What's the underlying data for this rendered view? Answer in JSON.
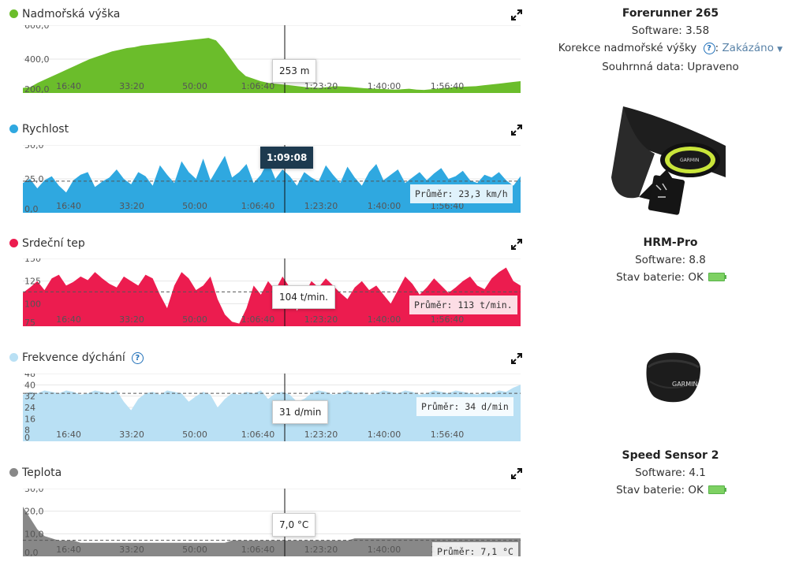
{
  "x_ticks": [
    "16:40",
    "33:20",
    "50:00",
    "1:06:40",
    "1:23:20",
    "1:40:00",
    "1:56:40"
  ],
  "charts": {
    "elevation": {
      "title": "Nadmořská výška",
      "color": "#6bbd2b",
      "y_ticks": [
        "600,0",
        "400,0",
        "200,0"
      ],
      "ylim": [
        200,
        600
      ],
      "tooltip": "253 m",
      "values": [
        230,
        235,
        260,
        280,
        300,
        320,
        340,
        360,
        380,
        400,
        415,
        430,
        445,
        455,
        465,
        470,
        480,
        485,
        490,
        495,
        500,
        505,
        510,
        515,
        520,
        525,
        510,
        460,
        400,
        340,
        300,
        285,
        270,
        260,
        255,
        250,
        245,
        240,
        235,
        232,
        230,
        235,
        240,
        238,
        236,
        232,
        228,
        226,
        224,
        222,
        220,
        222,
        225,
        220,
        218,
        222,
        226,
        230,
        234,
        236,
        238,
        240,
        245,
        250,
        255,
        260,
        265,
        270
      ]
    },
    "speed": {
      "title": "Rychlost",
      "color": "#2fa8e0",
      "y_ticks": [
        "50,0",
        "25,0",
        "0,0"
      ],
      "ylim": [
        0,
        50
      ],
      "tooltip": "1:09:08",
      "average": "Průměr: 23,3 km/h",
      "avg_value": 23.3,
      "values": [
        22,
        25,
        18,
        24,
        27,
        20,
        15,
        24,
        28,
        30,
        19,
        23,
        26,
        32,
        25,
        21,
        30,
        27,
        20,
        35,
        28,
        22,
        38,
        30,
        25,
        40,
        24,
        33,
        42,
        26,
        30,
        36,
        22,
        28,
        38,
        25,
        32,
        27,
        20,
        30,
        26,
        23,
        35,
        28,
        22,
        34,
        26,
        20,
        30,
        36,
        24,
        28,
        32,
        22,
        26,
        30,
        24,
        29,
        33,
        25,
        27,
        31,
        24,
        22,
        28,
        26,
        30,
        24,
        20,
        27
      ]
    },
    "heart": {
      "title": "Srdeční tep",
      "color": "#ec1c4f",
      "y_ticks": [
        "150",
        "125",
        "100",
        "75"
      ],
      "ylim": [
        75,
        150
      ],
      "tooltip": "104 t/min.",
      "average": "Průměr: 113 t/min.",
      "avg_value": 113,
      "values": [
        112,
        118,
        125,
        115,
        128,
        132,
        120,
        124,
        130,
        126,
        135,
        128,
        122,
        118,
        130,
        125,
        120,
        132,
        128,
        110,
        95,
        120,
        135,
        128,
        115,
        120,
        130,
        105,
        88,
        80,
        78,
        95,
        120,
        110,
        125,
        115,
        130,
        118,
        92,
        110,
        125,
        118,
        128,
        120,
        112,
        105,
        118,
        125,
        115,
        120,
        110,
        100,
        115,
        130,
        122,
        110,
        118,
        128,
        120,
        112,
        118,
        125,
        130,
        120,
        116,
        128,
        135,
        140,
        125,
        120
      ]
    },
    "breath": {
      "title": "Frekvence dýchání",
      "color": "#b9e0f4",
      "y_ticks": [
        "48",
        "40",
        "32",
        "24",
        "16",
        "8",
        "0"
      ],
      "ylim": [
        0,
        48
      ],
      "tooltip": "31 d/min",
      "average": "Průměr: 34 d/min",
      "avg_value": 34,
      "values": [
        33,
        35,
        34,
        36,
        35,
        34,
        36,
        35,
        33,
        34,
        36,
        35,
        34,
        36,
        28,
        22,
        30,
        34,
        35,
        33,
        36,
        35,
        34,
        28,
        32,
        35,
        33,
        24,
        30,
        34,
        33,
        35,
        34,
        36,
        30,
        34,
        35,
        33,
        28,
        30,
        34,
        36,
        35,
        33,
        34,
        36,
        34,
        35,
        33,
        34,
        36,
        35,
        34,
        36,
        35,
        33,
        34,
        36,
        35,
        34,
        36,
        35,
        34,
        33,
        35,
        34,
        36,
        35,
        38,
        40
      ]
    },
    "temp": {
      "title": "Teplota",
      "color": "#888888",
      "y_ticks": [
        "30,0",
        "20,0",
        "10,0",
        "0,0"
      ],
      "ylim": [
        0,
        30
      ],
      "tooltip": "7,0 °C",
      "average": "Průměr: 7,1 °C",
      "avg_value": 7.1,
      "values": [
        22,
        17,
        12,
        9,
        8,
        7,
        7,
        7,
        6,
        6,
        6,
        6,
        6,
        6,
        6,
        6,
        6,
        6,
        6,
        6,
        6,
        6,
        6,
        6,
        6,
        6,
        6,
        6,
        6,
        7,
        7,
        7,
        7,
        7,
        7,
        7,
        7,
        7,
        7,
        7,
        7,
        7,
        7,
        7,
        7,
        7,
        8,
        8,
        8,
        8,
        8,
        8,
        8,
        8,
        8,
        8,
        8,
        8,
        8,
        8,
        8,
        8,
        8,
        8,
        8,
        8,
        8,
        8,
        8,
        8
      ]
    }
  },
  "devices": {
    "forerunner": {
      "name": "Forerunner 265",
      "software": "Software: 3.58",
      "elev_label": "Korekce nadmořské výšky",
      "elev_value": "Zakázáno",
      "summary": "Souhrnná data: Upraveno"
    },
    "hrm": {
      "name": "HRM-Pro",
      "software": "Software: 8.8",
      "battery": "Stav baterie: OK"
    },
    "speed": {
      "name": "Speed Sensor 2",
      "software": "Software: 4.1",
      "battery": "Stav baterie: OK"
    }
  },
  "hrm_strap_brand": "GARMIN",
  "speed_sensor_brand": "GARMIN"
}
